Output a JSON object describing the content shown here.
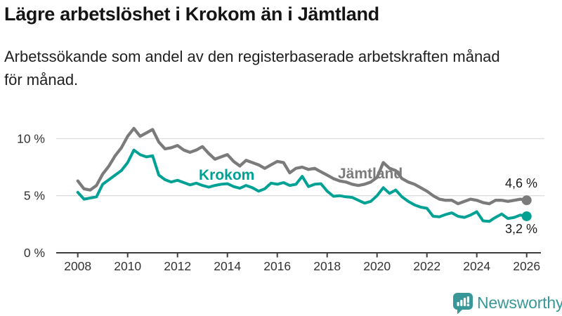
{
  "header": {
    "title": "Lägre arbetslöshet i Krokom än i Jämtland",
    "subtitle": "Arbetssökande som andel av den registerbaserade arbetskraften månad för månad.",
    "subtitle_lines": [
      "Arbetssökande som andel av den registerbaserade arbetskraften månad",
      "för månad."
    ]
  },
  "chart_data": {
    "type": "line",
    "title": "Lägre arbetslöshet i Krokom än i Jämtland",
    "xlabel": "",
    "ylabel": "Arbetssökande som andel av den registerbaserade arbetskraften",
    "unit": "%",
    "x_start": 2008,
    "x_step": 0.25,
    "xlim": [
      2008,
      2026
    ],
    "ylim": [
      0,
      11.5
    ],
    "grid": "horizontal",
    "legend_position": "inline-labels",
    "x_ticks": [
      "2008",
      "2010",
      "2012",
      "2014",
      "2016",
      "2018",
      "2020",
      "2022",
      "2024",
      "2026"
    ],
    "y_ticks": [
      {
        "value": 0,
        "label": "0 %"
      },
      {
        "value": 5,
        "label": "5 %"
      },
      {
        "value": 10,
        "label": "10 %"
      }
    ],
    "series": [
      {
        "name": "Jämtland",
        "color": "#7b7b7b",
        "end_label": "4,6 %",
        "end_value": 4.6,
        "values": [
          6.3,
          5.6,
          5.5,
          5.9,
          6.9,
          7.6,
          8.5,
          9.2,
          10.2,
          10.9,
          10.2,
          10.5,
          10.8,
          9.7,
          9.1,
          9.2,
          9.4,
          9.0,
          8.8,
          9.0,
          9.3,
          8.7,
          8.2,
          8.4,
          8.6,
          8.0,
          7.6,
          8.1,
          7.9,
          7.7,
          7.4,
          7.7,
          8.0,
          7.9,
          7.0,
          7.4,
          7.5,
          7.3,
          7.4,
          7.1,
          6.8,
          6.5,
          6.3,
          6.2,
          6.0,
          5.9,
          6.0,
          6.2,
          6.6,
          7.9,
          7.4,
          7.2,
          6.5,
          6.2,
          6.0,
          5.7,
          5.4,
          5.0,
          4.7,
          4.6,
          4.6,
          4.3,
          4.5,
          4.7,
          4.6,
          4.4,
          4.3,
          4.6,
          4.6,
          4.5,
          4.6,
          4.7,
          4.6
        ]
      },
      {
        "name": "Krokom",
        "color": "#00a195",
        "end_label": "3,2 %",
        "end_value": 3.2,
        "values": [
          5.3,
          4.7,
          4.8,
          4.9,
          6.0,
          6.4,
          6.8,
          7.2,
          7.9,
          9.0,
          8.6,
          8.4,
          8.5,
          6.8,
          6.4,
          6.2,
          6.35,
          6.15,
          5.95,
          6.1,
          5.9,
          5.75,
          5.9,
          6.0,
          6.05,
          5.8,
          5.65,
          5.9,
          5.7,
          5.4,
          5.6,
          6.1,
          6.0,
          6.15,
          5.9,
          6.0,
          6.7,
          5.8,
          6.0,
          6.05,
          5.4,
          4.95,
          5.0,
          4.9,
          4.85,
          4.6,
          4.35,
          4.5,
          5.0,
          5.7,
          5.2,
          5.5,
          4.9,
          4.5,
          4.2,
          4.0,
          3.9,
          3.2,
          3.15,
          3.35,
          3.5,
          3.2,
          3.1,
          3.3,
          3.6,
          2.8,
          2.75,
          3.1,
          3.4,
          3.0,
          3.1,
          3.3,
          3.2
        ]
      }
    ]
  },
  "footer": {
    "brand": "Newsworthy",
    "logo_color": "#3a9798"
  },
  "colors": {
    "krokom_line": "#00a195",
    "jamtland_line": "#7b7b7b",
    "gridline": "#dfdfdf",
    "axis": "#3d3d3d",
    "text": "#333333"
  }
}
